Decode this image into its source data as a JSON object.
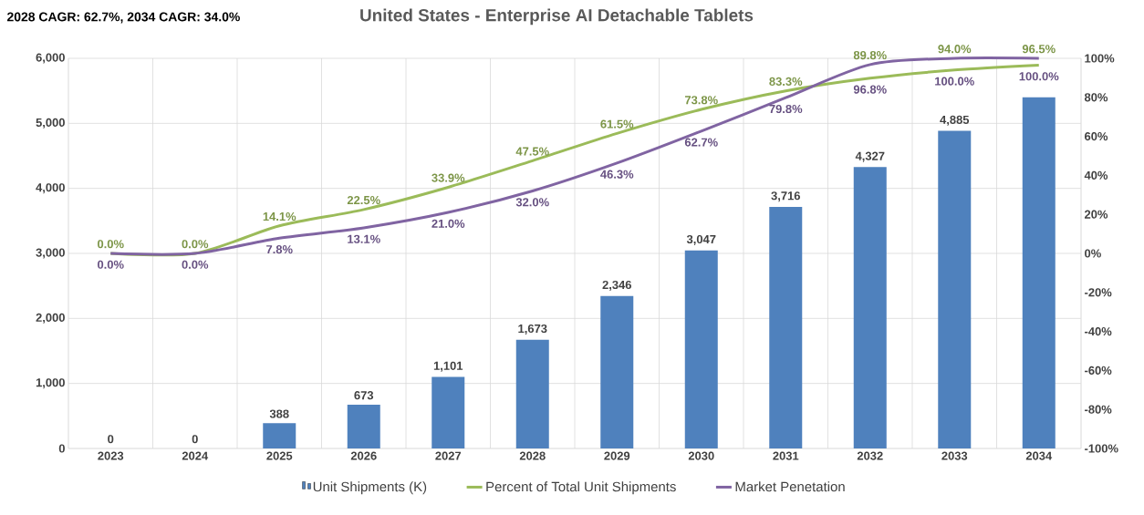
{
  "chart_data": {
    "type": "bar",
    "title": "United States - Enterprise AI Detachable Tablets",
    "annotations": [
      "2028 CAGR: 62.7%, 2034 CAGR: 34.0%"
    ],
    "categories": [
      "2023",
      "2024",
      "2025",
      "2026",
      "2027",
      "2028",
      "2029",
      "2030",
      "2031",
      "2032",
      "2033",
      "2034"
    ],
    "series": [
      {
        "name": "Unit Shipments (K)",
        "color": "#4f81bd",
        "values": [
          0,
          0,
          388,
          673,
          1101,
          1673,
          2346,
          3047,
          3716,
          4327,
          4885,
          5400
        ],
        "value_labels": [
          "0",
          "0",
          "388",
          "673",
          "1,101",
          "1,673",
          "2,346",
          "3,047",
          "3,716",
          "4,327",
          "4,885",
          null
        ]
      },
      {
        "name": "Percent of Total Unit Shipments",
        "type": "line",
        "axis": "y2",
        "color": "#9bbb59",
        "values": [
          0.0,
          0.0,
          14.1,
          22.5,
          33.9,
          47.5,
          61.5,
          73.8,
          83.3,
          89.8,
          94.0,
          96.5
        ],
        "value_labels": [
          "0.0%",
          "0.0%",
          "14.1%",
          "22.5%",
          "33.9%",
          "47.5%",
          "61.5%",
          "73.8%",
          "83.3%",
          "89.8%",
          "94.0%",
          "96.5%"
        ]
      },
      {
        "name": "Market Penetation",
        "type": "line",
        "axis": "y2",
        "color": "#8064a2",
        "values": [
          0.0,
          0.0,
          7.8,
          13.1,
          21.0,
          32.0,
          46.3,
          62.7,
          79.8,
          96.8,
          100.0,
          100.0
        ],
        "value_labels": [
          "0.0%",
          "0.0%",
          "7.8%",
          "13.1%",
          "21.0%",
          "32.0%",
          "46.3%",
          "62.7%",
          "79.8%",
          "96.8%",
          "100.0%",
          "100.0%"
        ]
      }
    ],
    "ylim": [
      0,
      6000
    ],
    "yticks": [
      {
        "value": 0,
        "label": "0"
      },
      {
        "value": 1000,
        "label": "1,000"
      },
      {
        "value": 2000,
        "label": "2,000"
      },
      {
        "value": 3000,
        "label": "3,000"
      },
      {
        "value": 4000,
        "label": "4,000"
      },
      {
        "value": 5000,
        "label": "5,000"
      },
      {
        "value": 6000,
        "label": "6,000"
      }
    ],
    "y2lim": [
      -100,
      100
    ],
    "y2ticks": [
      {
        "value": -100,
        "label": "-100%"
      },
      {
        "value": -80,
        "label": "-80%"
      },
      {
        "value": -60,
        "label": "-60%"
      },
      {
        "value": -40,
        "label": "-40%"
      },
      {
        "value": -20,
        "label": "-20%"
      },
      {
        "value": 0,
        "label": "0%"
      },
      {
        "value": 20,
        "label": "20%"
      },
      {
        "value": 40,
        "label": "40%"
      },
      {
        "value": 60,
        "label": "60%"
      },
      {
        "value": 80,
        "label": "80%"
      },
      {
        "value": 100,
        "label": "100%"
      }
    ],
    "grid": true,
    "legend": "bottom",
    "marker": "none",
    "line_style": "solid"
  }
}
